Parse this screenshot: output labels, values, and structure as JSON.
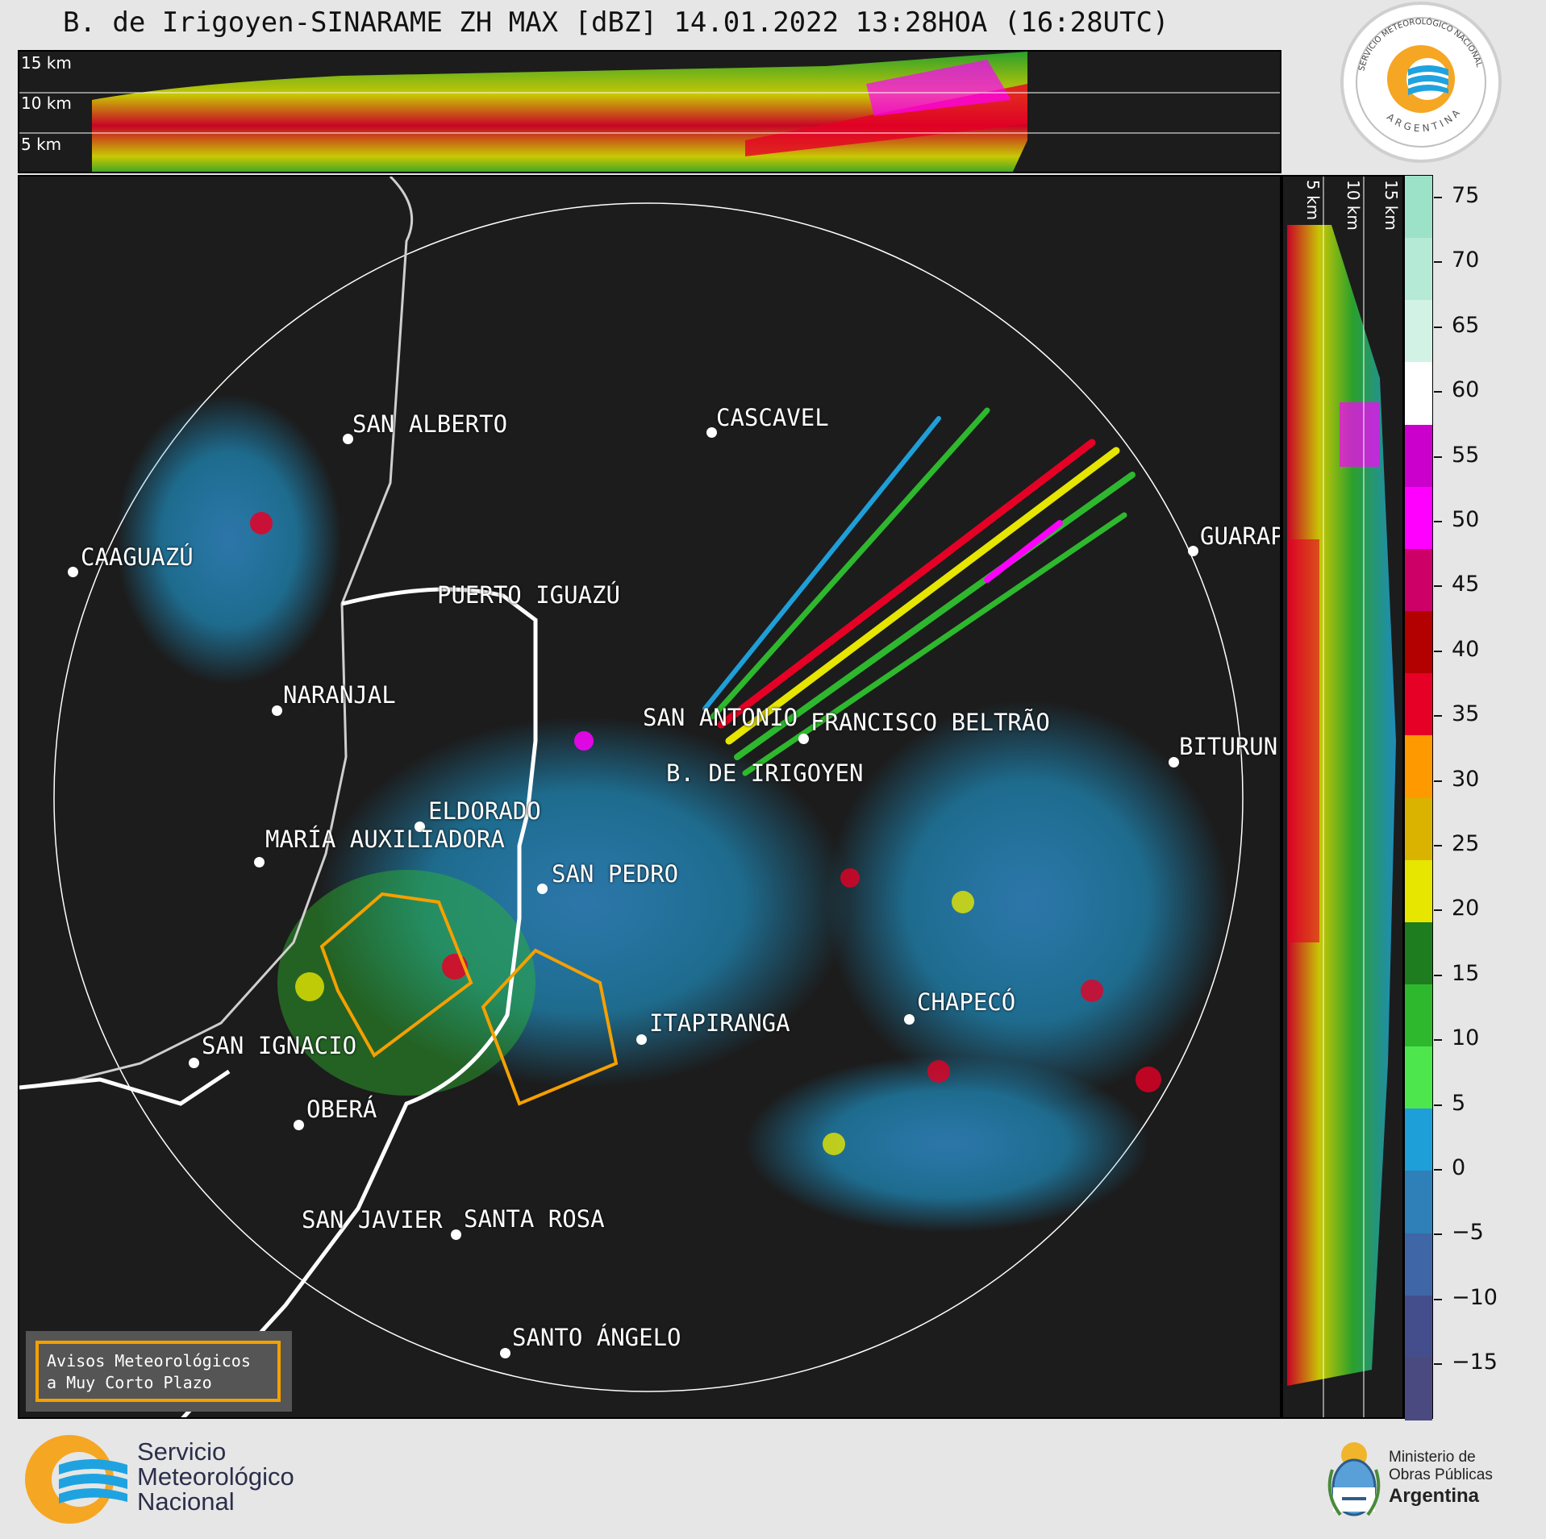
{
  "title": "B. de Irigoyen-SINARAME ZH MAX [dBZ] 14.01.2022 13:28HOA (16:28UTC)",
  "top_panel": {
    "km_labels": [
      "15 km",
      "10 km",
      "5 km"
    ]
  },
  "side_panel": {
    "km_labels": [
      "5 km",
      "10 km",
      "15 km"
    ]
  },
  "colorbar": {
    "ticks": [
      "75",
      "70",
      "65",
      "60",
      "55",
      "50",
      "45",
      "40",
      "35",
      "30",
      "25",
      "20",
      "15",
      "10",
      "5",
      "0",
      "−5",
      "−10",
      "−15"
    ],
    "colors": [
      "#9be2c8",
      "#b5ead6",
      "#d2f2e5",
      "#ffffff",
      "#cc00cc",
      "#ff00ff",
      "#cc0066",
      "#b30000",
      "#e60026",
      "#ff9900",
      "#d9b300",
      "#e6e600",
      "#1e7d1e",
      "#2eb82e",
      "#4de64d",
      "#1f9fd8",
      "#2f7fb8",
      "#3f66a6",
      "#454e8c",
      "#4a4a80"
    ]
  },
  "cities": [
    {
      "name": "SAN ALBERTO"
    },
    {
      "name": "CASCAVEL"
    },
    {
      "name": "CAAGUAZÚ"
    },
    {
      "name": "GUARAP"
    },
    {
      "name": "PUERTO IGUAZÚ"
    },
    {
      "name": "NARANJAL"
    },
    {
      "name": "SAN ANTONIO"
    },
    {
      "name": "FRANCISCO BELTRÃO"
    },
    {
      "name": "B. DE IRIGOYEN"
    },
    {
      "name": "BITURUN"
    },
    {
      "name": "ELDORADO"
    },
    {
      "name": "MARÍA AUXILIADORA"
    },
    {
      "name": "SAN PEDRO"
    },
    {
      "name": "CHAPECÓ"
    },
    {
      "name": "ITAPIRANGA"
    },
    {
      "name": "SAN IGNACIO"
    },
    {
      "name": "OBERÁ"
    },
    {
      "name": "SAN JAVIER"
    },
    {
      "name": "SANTA ROSA"
    },
    {
      "name": "SANTO ÁNGELO"
    }
  ],
  "legend": {
    "text": "Avisos Meteorológicos\na Muy Corto Plazo"
  },
  "badge": {
    "ring_text": "SERVICIO METEOROLÓGICO NACIONAL",
    "country": "ARGENTINA"
  },
  "footer": {
    "smn_line1": "Servicio",
    "smn_line2": "Meteorológico",
    "smn_line3": "Nacional",
    "ministry_line1": "Ministerio de",
    "ministry_line2": "Obras Públicas",
    "ministry_line3": "Argentina",
    "brand_orange": "#f5a623",
    "brand_blue": "#1fa3e0"
  }
}
